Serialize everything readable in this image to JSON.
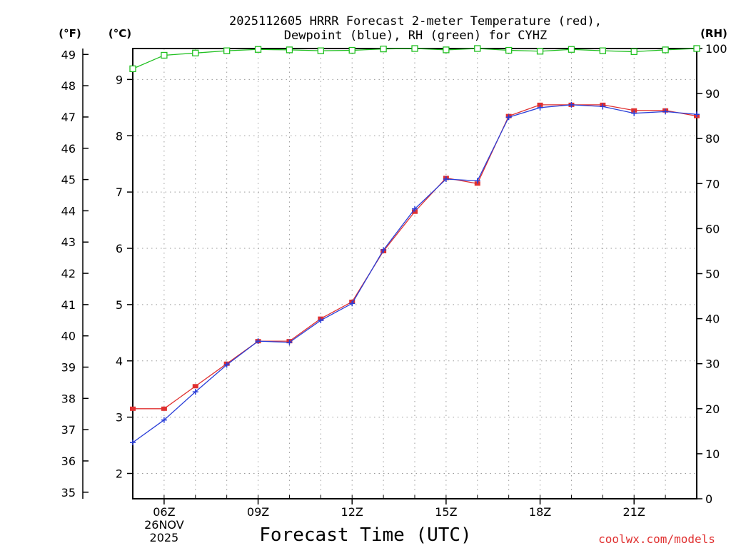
{
  "chart_data": {
    "type": "line",
    "title_lines": [
      "2025112605 HRRR Forecast 2-meter Temperature (red),",
      "Dewpoint (blue), RH (green) for CYHZ"
    ],
    "xlabel": "Forecast Time (UTC)",
    "watermark": "coolwx.com/models",
    "axis_units": {
      "fahrenheit": "(°F)",
      "celsius": "(°C)",
      "rh": "(RH)"
    },
    "x_hours": [
      5,
      6,
      7,
      8,
      9,
      10,
      11,
      12,
      13,
      14,
      15,
      16,
      17,
      18,
      19,
      20,
      21,
      22,
      23
    ],
    "x_range": [
      5,
      23
    ],
    "x_ticks": [
      {
        "hour": 6,
        "label": "06Z",
        "date_line1": "26NOV",
        "date_line2": "2025"
      },
      {
        "hour": 9,
        "label": "09Z"
      },
      {
        "hour": 12,
        "label": "12Z"
      },
      {
        "hour": 15,
        "label": "15Z"
      },
      {
        "hour": 18,
        "label": "18Z"
      },
      {
        "hour": 21,
        "label": "21Z"
      }
    ],
    "celsius_range": [
      1.55,
      9.55
    ],
    "celsius_ticks": [
      2,
      3,
      4,
      5,
      6,
      7,
      8,
      9
    ],
    "fahrenheit_ticks": [
      35,
      36,
      37,
      38,
      39,
      40,
      41,
      42,
      43,
      44,
      45,
      46,
      47,
      48,
      49
    ],
    "rh_range": [
      0,
      100
    ],
    "rh_ticks": [
      0,
      10,
      20,
      30,
      40,
      50,
      60,
      70,
      80,
      90,
      100
    ],
    "series": [
      {
        "name": "Temperature",
        "unit": "C",
        "color": "#e03030",
        "marker": "square-filled",
        "values": [
          3.15,
          3.15,
          3.55,
          3.95,
          4.35,
          4.35,
          4.75,
          5.05,
          5.95,
          6.65,
          7.25,
          7.15,
          8.35,
          8.55,
          8.55,
          8.55,
          8.45,
          8.45,
          8.35
        ]
      },
      {
        "name": "Dewpoint",
        "unit": "C",
        "color": "#2a3ed8",
        "marker": "plus",
        "values": [
          2.55,
          2.95,
          3.45,
          3.93,
          4.35,
          4.33,
          4.72,
          5.02,
          5.97,
          6.7,
          7.23,
          7.2,
          8.33,
          8.5,
          8.55,
          8.52,
          8.4,
          8.43,
          8.38
        ]
      },
      {
        "name": "RH",
        "unit": "%",
        "color": "#20c020",
        "marker": "square-open",
        "values": [
          95.5,
          98.5,
          99.0,
          99.5,
          99.8,
          99.7,
          99.5,
          99.6,
          99.9,
          100,
          99.7,
          100,
          99.6,
          99.4,
          99.8,
          99.5,
          99.3,
          99.7,
          100
        ]
      }
    ]
  }
}
